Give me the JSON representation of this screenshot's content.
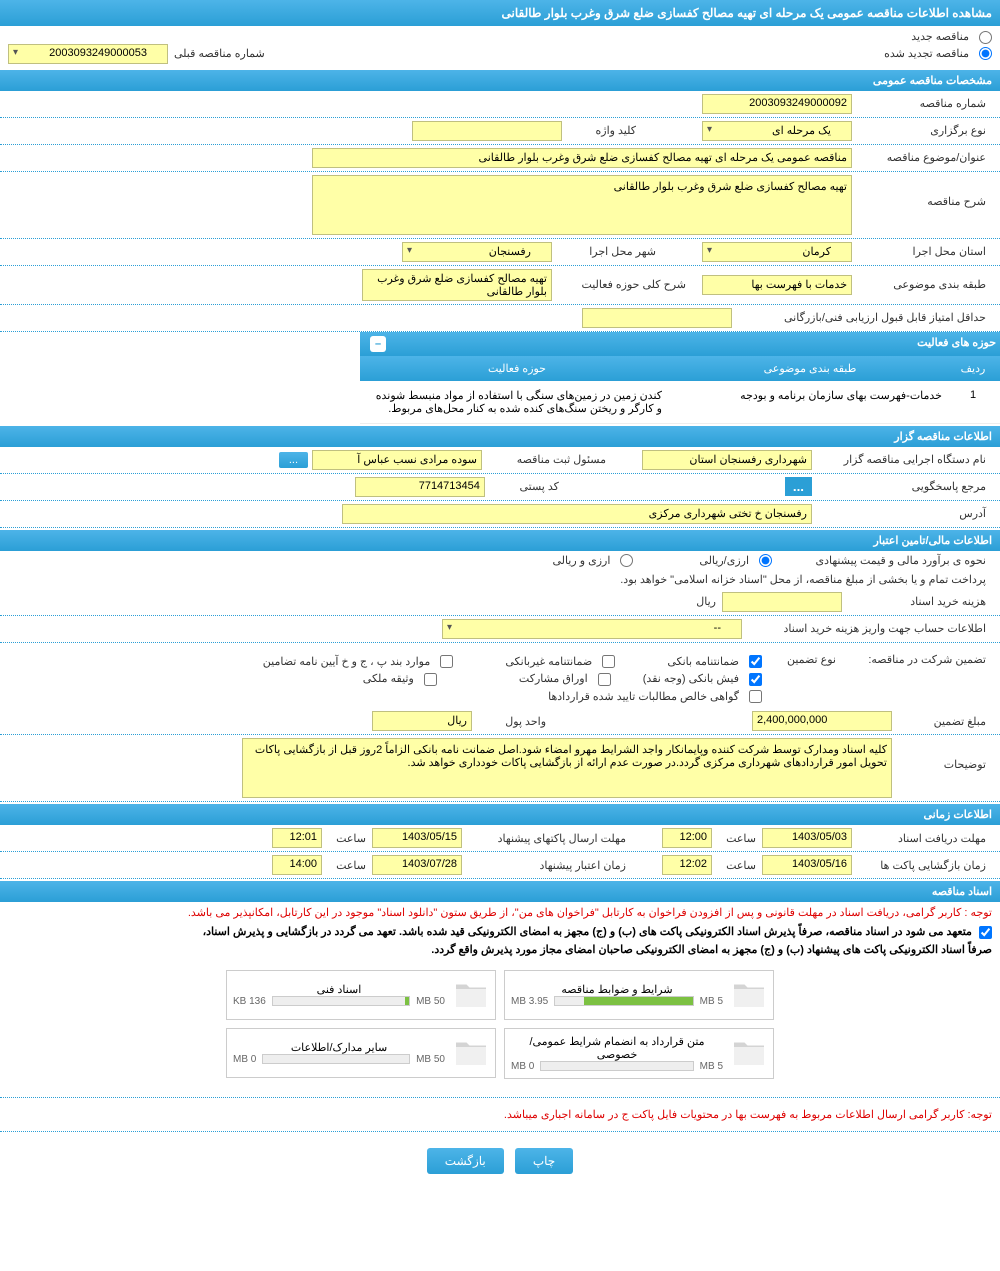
{
  "header": {
    "title": "مشاهده اطلاعات مناقصه عمومی یک مرحله ای تهیه مصالح کفسازی ضلع شرق وغرب بلوار طالقانی"
  },
  "tender_type": {
    "new_label": "مناقصه جدید",
    "renewed_label": "مناقصه تجدید شده",
    "prev_number_label": "شماره مناقصه قبلی",
    "prev_number": "2003093249000053"
  },
  "sections": {
    "general": "مشخصات مناقصه عمومی",
    "organizer": "اطلاعات مناقصه گزار",
    "financial": "اطلاعات مالی/تامین اعتبار",
    "timing": "اطلاعات زمانی",
    "documents": "اسناد مناقصه",
    "activities": "حوزه های فعالیت"
  },
  "general": {
    "tender_number_label": "شماره مناقصه",
    "tender_number": "2003093249000092",
    "type_label": "نوع برگزاری",
    "type_value": "یک مرحله ای",
    "keyword_label": "کلید واژه",
    "keyword_value": "",
    "subject_label": "عنوان/موضوع مناقصه",
    "subject_value": "مناقصه عمومی یک مرحله ای تهیه مصالح کفسازی ضلع شرق وغرب بلوار طالقانی",
    "description_label": "شرح مناقصه",
    "description_value": "تهیه مصالح کفسازی ضلع شرق وغرب بلوار طالقانی",
    "province_label": "استان محل اجرا",
    "province_value": "کرمان",
    "city_label": "شهر محل اجرا",
    "city_value": "رفسنجان",
    "category_label": "طبقه بندی موضوعی",
    "category_value": "خدمات با فهرست بها",
    "activity_desc_label": "شرح کلی حوزه فعالیت",
    "activity_desc_value": "تهیه مصالح کفسازی ضلع شرق وغرب بلوار طالقانی",
    "min_score_label": "حداقل امتیاز قابل قبول ارزیابی فنی/بازرگانی",
    "min_score_value": ""
  },
  "activity_table": {
    "col_row": "ردیف",
    "col_category": "طبقه بندی موضوعی",
    "col_activity": "حوزه فعالیت",
    "rows": [
      {
        "num": "1",
        "category": "خدمات-فهرست بهای سازمان برنامه و بودجه",
        "activity": "کندن زمین در زمین‌های سنگی با استفاده از مواد منبسط شونده و کارگر و ریختن سنگ‌های کنده شده به کنار محل‌های مربوط."
      }
    ]
  },
  "organizer": {
    "org_name_label": "نام دستگاه اجرایی مناقصه گزار",
    "org_name_value": "شهرداری رفسنجان استان",
    "registrar_label": "مسئول ثبت مناقصه",
    "registrar_value": "سوده مرادی نسب عباس آ",
    "more_btn": "...",
    "responder_label": "مرجع پاسخگویی",
    "responder_btn": "...",
    "postal_label": "کد پستی",
    "postal_value": "7714713454",
    "address_label": "آدرس",
    "address_value": "رفسنجان خ تختی شهرداری مرکزی"
  },
  "financial": {
    "estimate_label": "نحوه ی برآورد مالی و قیمت پیشنهادی",
    "opt_arzi_riali": "ارزی/ریالی",
    "opt_arzi_va_riali": "ارزی و ریالی",
    "treasury_note": "پرداخت تمام و یا بخشی از مبلغ مناقصه، از محل \"اسناد خزانه اسلامی\" خواهد بود.",
    "doc_fee_label": "هزینه خرید اسناد",
    "doc_fee_unit": "ریال",
    "account_label": "اطلاعات حساب جهت واریز هزینه خرید اسناد",
    "account_value": "--",
    "guarantee_label": "تضمین شرکت در مناقصه:",
    "guarantee_type_label": "نوع تضمین",
    "opt_bank_guarantee": "ضمانتنامه بانکی",
    "opt_nonbank_guarantee": "ضمانتنامه غیربانکی",
    "opt_clauses": "موارد بند پ ، ج و خ آیین نامه تضامین",
    "opt_cash": "فیش بانکی (وجه نقد)",
    "opt_securities": "اوراق مشارکت",
    "opt_property": "وثیقه ملکی",
    "opt_receivables": "گواهی خالص مطالبات تایید شده قراردادها",
    "amount_label": "مبلغ تضمین",
    "amount_value": "2,400,000,000",
    "currency_label": "واحد پول",
    "currency_value": "ریال",
    "notes_label": "توضیحات",
    "notes_value": "کلیه اسناد ومدارک توسط شرکت کننده وپایمانکار واجد الشرایط مهرو امضاء شود.اصل ضمانت نامه بانکی  الزاماً 2روز قبل از بازگشایی پاکات تحویل امور قراردادهای شهرداری مرکزی گردد.در صورت عدم ارائه از بازگشایی پاکات خودداری خواهد شد."
  },
  "timing": {
    "doc_receive_label": "مهلت دریافت اسناد",
    "doc_receive_date": "1403/05/03",
    "doc_receive_time_label": "ساعت",
    "doc_receive_time": "12:00",
    "send_label": "مهلت ارسال پاکتهای پیشنهاد",
    "send_date": "1403/05/15",
    "send_time_label": "ساعت",
    "send_time": "12:01",
    "open_label": "زمان بازگشایی پاکت ها",
    "open_date": "1403/05/16",
    "open_time_label": "ساعت",
    "open_time": "12:02",
    "validity_label": "زمان اعتبار پیشنهاد",
    "validity_date": "1403/07/28",
    "validity_time_label": "ساعت",
    "validity_time": "14:00"
  },
  "documents": {
    "note1": "توجه : کاربر گرامی، دریافت اسناد در مهلت قانونی و پس از افزودن فراخوان به کارتابل \"فراخوان های من\"، از طریق ستون \"دانلود اسناد\" موجود در این کارتابل، امکانپذیر می باشد.",
    "note2a": "متعهد می شود در اسناد مناقصه، صرفاً پذیرش اسناد الکترونیکی پاکت های (ب) و (ج) مجهز به امضای الکترونیکی قید شده باشد. تعهد می گردد در بازگشایی و پذیرش اسناد،",
    "note2b": "صرفاً اسناد الکترونیکی پاکت های پیشنهاد (ب) و (ج) مجهز به امضای الکترونیکی صاحبان امضای مجاز مورد پذیرش واقع گردد.",
    "files": [
      {
        "name": "شرایط و ضوابط مناقصه",
        "size": "3.95 MB",
        "max": "5 MB",
        "progress": 79
      },
      {
        "name": "اسناد فنی",
        "size": "136 KB",
        "max": "50 MB",
        "progress": 3
      },
      {
        "name": "متن قرارداد به انضمام شرایط عمومی/خصوصی",
        "size": "0 MB",
        "max": "5 MB",
        "progress": 0
      },
      {
        "name": "سایر مدارک/اطلاعات",
        "size": "0 MB",
        "max": "50 MB",
        "progress": 0
      }
    ],
    "footer_note": "توجه: کاربر گرامی ارسال اطلاعات مربوط به فهرست بها در محتویات فایل پاکت ج در سامانه اجباری میباشد."
  },
  "footer": {
    "print": "چاپ",
    "back": "بازگشت"
  },
  "colors": {
    "primary": "#2b9fd6",
    "yellow": "#ffffa7",
    "red": "#d00000",
    "green": "#7cc142"
  }
}
